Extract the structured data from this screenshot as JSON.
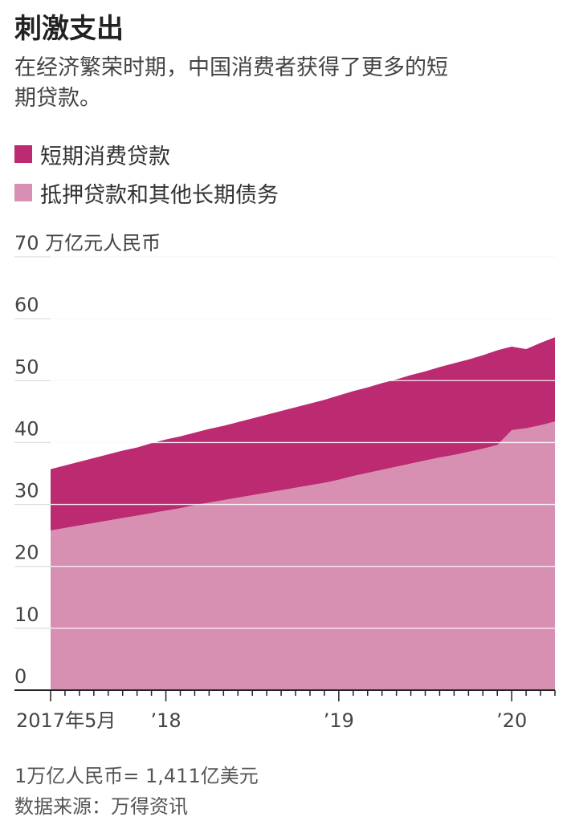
{
  "header": {
    "title": "刺激支出",
    "subtitle": "在经济繁荣时期，中国消费者获得了更多的短期贷款。"
  },
  "legend": {
    "items": [
      {
        "label": "短期消费贷款",
        "color": "#bc2a72"
      },
      {
        "label": "抵押贷款和其他长期债务",
        "color": "#d890b2"
      }
    ]
  },
  "footer": {
    "note": "1万亿人民币= 1,411亿美元",
    "source": "数据来源：万得资讯"
  },
  "chart_data": {
    "type": "area",
    "stacked": true,
    "yunit": "万亿元人民币",
    "ylim": [
      0,
      70
    ],
    "yticks": [
      0,
      10,
      20,
      30,
      40,
      50,
      60,
      70
    ],
    "grid": true,
    "xtick_labels": [
      {
        "label": "2017年5月",
        "month": "2017-05"
      },
      {
        "label": "’18",
        "month": "2018-01"
      },
      {
        "label": "’19",
        "month": "2019-01"
      },
      {
        "label": "’20",
        "month": "2020-01"
      }
    ],
    "x": [
      "2017-05",
      "2017-06",
      "2017-07",
      "2017-08",
      "2017-09",
      "2017-10",
      "2017-11",
      "2017-12",
      "2018-01",
      "2018-02",
      "2018-03",
      "2018-04",
      "2018-05",
      "2018-06",
      "2018-07",
      "2018-08",
      "2018-09",
      "2018-10",
      "2018-11",
      "2018-12",
      "2019-01",
      "2019-02",
      "2019-03",
      "2019-04",
      "2019-05",
      "2019-06",
      "2019-07",
      "2019-08",
      "2019-09",
      "2019-10",
      "2019-11",
      "2019-12",
      "2020-01",
      "2020-02",
      "2020-03",
      "2020-04"
    ],
    "series": [
      {
        "name": "抵押贷款和其他长期债务",
        "color": "#d890b2",
        "values": [
          25.8,
          26.2,
          26.6,
          27.0,
          27.4,
          27.8,
          28.2,
          28.6,
          29.0,
          29.4,
          29.9,
          30.3,
          30.7,
          31.1,
          31.5,
          31.9,
          32.3,
          32.7,
          33.1,
          33.5,
          34.0,
          34.6,
          35.1,
          35.6,
          36.1,
          36.6,
          37.1,
          37.6,
          38.0,
          38.5,
          39.0,
          39.6,
          42.0,
          42.3,
          42.8,
          43.4
        ]
      },
      {
        "name": "短期消费贷款",
        "color": "#bc2a72",
        "values": [
          9.9,
          10.1,
          10.3,
          10.5,
          10.7,
          10.9,
          11.0,
          11.3,
          11.5,
          11.6,
          11.7,
          11.9,
          12.0,
          12.2,
          12.4,
          12.6,
          12.8,
          13.0,
          13.2,
          13.4,
          13.6,
          13.7,
          13.8,
          14.0,
          14.1,
          14.3,
          14.4,
          14.6,
          14.8,
          14.9,
          15.1,
          15.3,
          13.5,
          12.8,
          13.3,
          13.6
        ]
      }
    ]
  }
}
